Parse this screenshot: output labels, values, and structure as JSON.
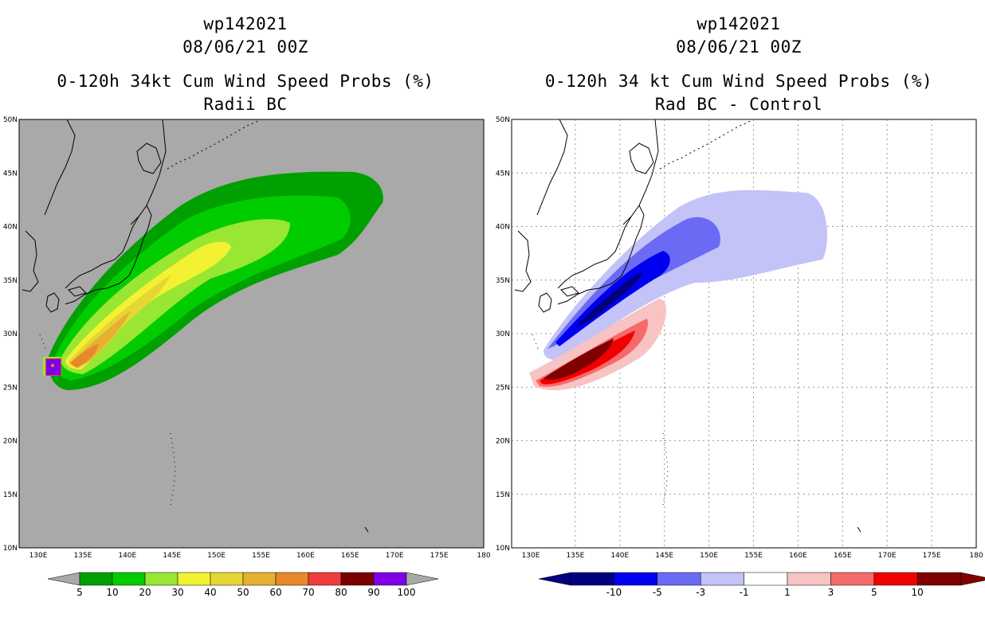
{
  "left": {
    "title_id": "wp142021",
    "title_date": "08/06/21 00Z",
    "subtitle1": "0-120h 34kt Cum Wind Speed Probs (%)",
    "subtitle2": "Radii BC",
    "colorbar_labels": [
      "5",
      "10",
      "20",
      "30",
      "40",
      "50",
      "60",
      "70",
      "80",
      "90",
      "100"
    ],
    "colorbar_colors": [
      "#00a000",
      "#00cc00",
      "#99e633",
      "#f2f233",
      "#e6d633",
      "#e6b033",
      "#e6882b",
      "#f03c3c",
      "#7a0000",
      "#7f00e6"
    ]
  },
  "right": {
    "title_id": "wp142021",
    "title_date": "08/06/21 00Z",
    "subtitle1": "0-120h 34 kt Cum Wind Speed Probs (%)",
    "subtitle2": "Rad BC - Control",
    "colorbar_labels": [
      "-10",
      "-5",
      "-3",
      "-1",
      "1",
      "3",
      "5",
      "10"
    ],
    "colorbar_colors": [
      "#000080",
      "#0000f0",
      "#6a6af5",
      "#c3c3f8",
      "#ffffff",
      "#f8c3c3",
      "#f56a6a",
      "#f00000",
      "#800000"
    ]
  },
  "axes": {
    "lon_labels": [
      "130E",
      "135E",
      "140E",
      "145E",
      "150E",
      "155E",
      "160E",
      "165E",
      "170E",
      "175E",
      "180"
    ],
    "lat_labels": [
      "50N",
      "45N",
      "40N",
      "35N",
      "30N",
      "25N",
      "20N",
      "15N",
      "10N"
    ]
  },
  "colors": {
    "map_gray": "#a9a9a9"
  }
}
